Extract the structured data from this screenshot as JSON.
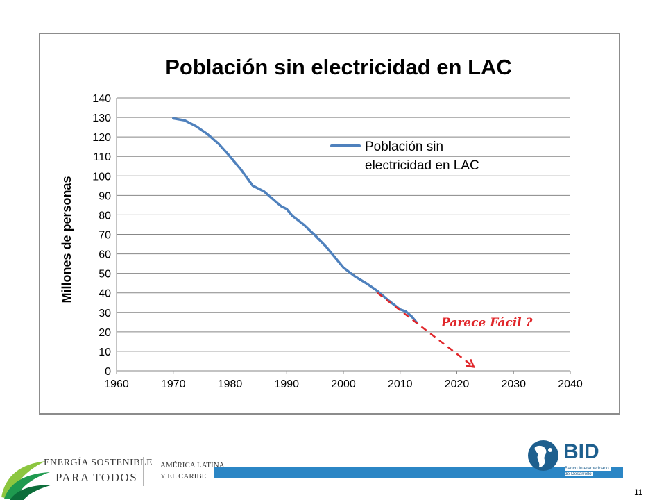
{
  "chart_data": {
    "type": "line",
    "title": "Población sin electricidad en LAC",
    "ylabel": "Millones de personas",
    "xlabel": "",
    "xlim": [
      1960,
      2040
    ],
    "ylim": [
      0,
      140
    ],
    "x_ticks": [
      "1960",
      "1970",
      "1980",
      "1990",
      "2000",
      "2010",
      "2020",
      "2030",
      "2040"
    ],
    "y_ticks": [
      "140",
      "130",
      "120",
      "110",
      "100",
      "90",
      "80",
      "70",
      "60",
      "50",
      "40",
      "30",
      "20",
      "10",
      "0"
    ],
    "grid": true,
    "legend_position": "top-right",
    "series": [
      {
        "name": "Población sin electricidad en LAC",
        "color": "#4f81bd",
        "x": [
          1970,
          1972,
          1974,
          1976,
          1978,
          1980,
          1982,
          1984,
          1985,
          1986,
          1988,
          1989,
          1990,
          1991,
          1993,
          1995,
          1997,
          1999,
          2000,
          2002,
          2004,
          2006,
          2008,
          2010,
          2011,
          2012,
          2013
        ],
        "y": [
          129.5,
          128.5,
          125.5,
          121.5,
          116.5,
          110,
          103,
          95,
          93.5,
          92,
          87,
          84.5,
          83,
          79.5,
          75,
          69.5,
          63.5,
          56.5,
          53,
          48.5,
          45,
          41,
          36,
          31.5,
          30.5,
          28,
          24.5
        ]
      }
    ],
    "annotations": [
      {
        "text": "Parece Fácil ?",
        "color": "#e0262a",
        "arrow_from": [
          2006,
          40
        ],
        "arrow_to": [
          2023,
          2
        ]
      }
    ]
  },
  "footer": {
    "energia_line1": "ENERGÍA SOSTENIBLE",
    "energia_line2": "PARA TODOS",
    "america_line1": "AMÉRICA LATINA",
    "america_line2": "Y EL CARIBE",
    "bid_name": "BID",
    "bid_sub_line1": "Banco Interamericano",
    "bid_sub_line2": "de Desarrollo",
    "page_number": "11"
  }
}
